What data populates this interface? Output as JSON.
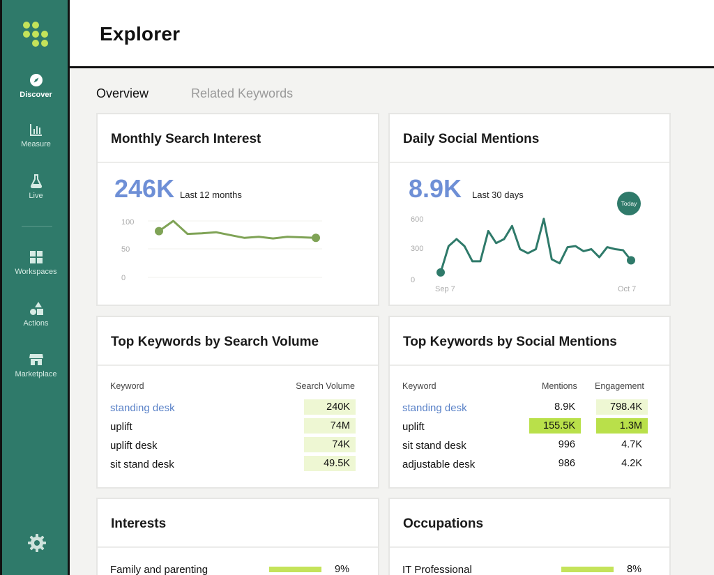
{
  "app": {
    "title": "Explorer"
  },
  "sidebar": {
    "items": [
      {
        "label": "Discover",
        "icon": "compass-icon"
      },
      {
        "label": "Measure",
        "icon": "bar-chart-icon"
      },
      {
        "label": "Live",
        "icon": "flask-icon"
      },
      {
        "label": "Workspaces",
        "icon": "grid-icon"
      },
      {
        "label": "Actions",
        "icon": "shapes-icon"
      },
      {
        "label": "Marketplace",
        "icon": "store-icon"
      }
    ],
    "settings_icon": "gear-icon"
  },
  "tabs": [
    {
      "label": "Overview",
      "active": true
    },
    {
      "label": "Related Keywords",
      "active": false
    }
  ],
  "search_interest": {
    "title": "Monthly Search Interest",
    "value": "246K",
    "period": "Last 12 months",
    "chart_data": {
      "type": "line",
      "y_ticks": [
        "100",
        "50",
        "0"
      ],
      "ylim": [
        0,
        100
      ],
      "values": [
        82,
        100,
        77,
        78,
        80,
        75,
        70,
        72,
        69,
        72,
        71,
        70
      ],
      "line_color": "#7fa356"
    }
  },
  "social_mentions": {
    "title": "Daily Social Mentions",
    "value": "8.9K",
    "period": "Last 30 days",
    "today_label": "Today",
    "chart_data": {
      "type": "line",
      "y_ticks": [
        "600",
        "300",
        "0"
      ],
      "ylim": [
        0,
        600
      ],
      "x_labels": [
        "Sep 7",
        "Oct 7"
      ],
      "values": [
        70,
        330,
        400,
        330,
        180,
        180,
        480,
        360,
        400,
        530,
        300,
        260,
        300,
        600,
        200,
        160,
        320,
        330,
        280,
        300,
        220,
        320,
        300,
        290,
        190
      ],
      "line_color": "#2f7a6a"
    }
  },
  "top_search": {
    "title": "Top Keywords by Search Volume",
    "columns": [
      "Keyword",
      "Search Volume"
    ],
    "rows": [
      {
        "keyword": "standing desk",
        "volume": "240K"
      },
      {
        "keyword": "uplift",
        "volume": "74M"
      },
      {
        "keyword": "uplift desk",
        "volume": "74K"
      },
      {
        "keyword": "sit stand desk",
        "volume": "49.5K"
      }
    ]
  },
  "top_social": {
    "title": "Top Keywords by Social Mentions",
    "columns": [
      "Keyword",
      "Mentions",
      "Engagement"
    ],
    "rows": [
      {
        "keyword": "standing desk",
        "mentions": "8.9K",
        "engagement": "798.4K"
      },
      {
        "keyword": "uplift",
        "mentions": "155.5K",
        "engagement": "1.3M"
      },
      {
        "keyword": "sit stand desk",
        "mentions": "996",
        "engagement": "4.7K"
      },
      {
        "keyword": "adjustable desk",
        "mentions": "986",
        "engagement": "4.2K"
      }
    ]
  },
  "interests": {
    "title": "Interests",
    "rows": [
      {
        "label": "Family and parenting",
        "value": "9%"
      }
    ]
  },
  "occupations": {
    "title": "Occupations",
    "rows": [
      {
        "label": "IT Professional",
        "value": "8%"
      }
    ]
  },
  "colors": {
    "brand": "#2f7a6a",
    "accent": "#c4e35a",
    "link": "#5a82c8",
    "number": "#6e8fd6"
  }
}
